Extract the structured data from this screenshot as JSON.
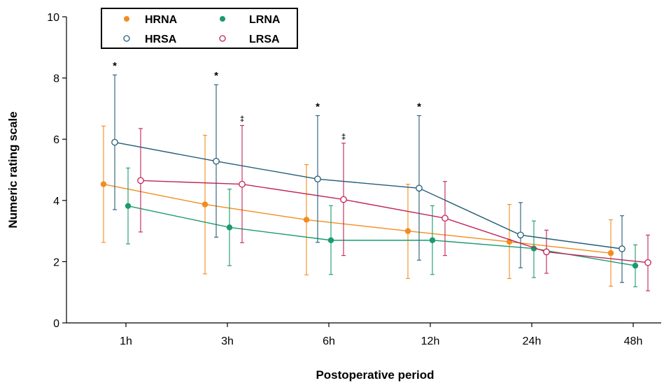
{
  "chart_data": {
    "type": "line",
    "xlabel": "Postoperative period",
    "ylabel": "Numeric rating scale",
    "categories": [
      "1h",
      "3h",
      "6h",
      "12h",
      "24h",
      "48h"
    ],
    "ylim": [
      0,
      10
    ],
    "yticks": [
      "0",
      "2",
      "4",
      "6",
      "8",
      "10"
    ],
    "legend_position": "top-left",
    "series": [
      {
        "name": "HRNA",
        "color": "#F28C1E",
        "marker": "filled",
        "values": [
          4.53,
          3.87,
          3.37,
          3.0,
          2.65,
          2.28
        ],
        "error_low": [
          2.63,
          1.6,
          1.57,
          1.45,
          1.45,
          1.2
        ],
        "error_high": [
          6.43,
          6.13,
          5.17,
          4.53,
          3.87,
          3.37
        ]
      },
      {
        "name": "LRNA",
        "color": "#1A9B6C",
        "marker": "filled",
        "values": [
          3.82,
          3.12,
          2.7,
          2.7,
          2.43,
          1.87
        ],
        "error_low": [
          2.58,
          1.87,
          1.58,
          1.58,
          1.48,
          1.18
        ],
        "error_high": [
          5.06,
          4.37,
          3.83,
          3.83,
          3.33,
          2.55
        ]
      },
      {
        "name": "HRSA",
        "color": "#245E78",
        "marker": "open",
        "values": [
          5.9,
          5.28,
          4.7,
          4.4,
          2.87,
          2.42
        ],
        "error_low": [
          3.7,
          2.8,
          2.63,
          2.05,
          1.8,
          1.32
        ],
        "error_high": [
          8.1,
          7.78,
          6.77,
          6.77,
          3.93,
          3.5
        ]
      },
      {
        "name": "LRSA",
        "color": "#C0245A",
        "marker": "open",
        "values": [
          4.65,
          4.53,
          4.03,
          3.42,
          2.32,
          1.97
        ],
        "error_low": [
          2.97,
          2.62,
          2.2,
          2.2,
          1.62,
          1.05
        ],
        "error_high": [
          6.35,
          6.45,
          5.87,
          4.62,
          3.03,
          2.87
        ]
      }
    ],
    "annotations": [
      {
        "text": "*",
        "category": "1h",
        "series": "HRSA"
      },
      {
        "text": "*",
        "category": "3h",
        "series": "HRSA"
      },
      {
        "text": "‡",
        "category": "3h",
        "series": "LRSA"
      },
      {
        "text": "*",
        "category": "6h",
        "series": "HRSA"
      },
      {
        "text": "‡",
        "category": "6h",
        "series": "LRSA"
      },
      {
        "text": "*",
        "category": "12h",
        "series": "HRSA"
      }
    ]
  }
}
